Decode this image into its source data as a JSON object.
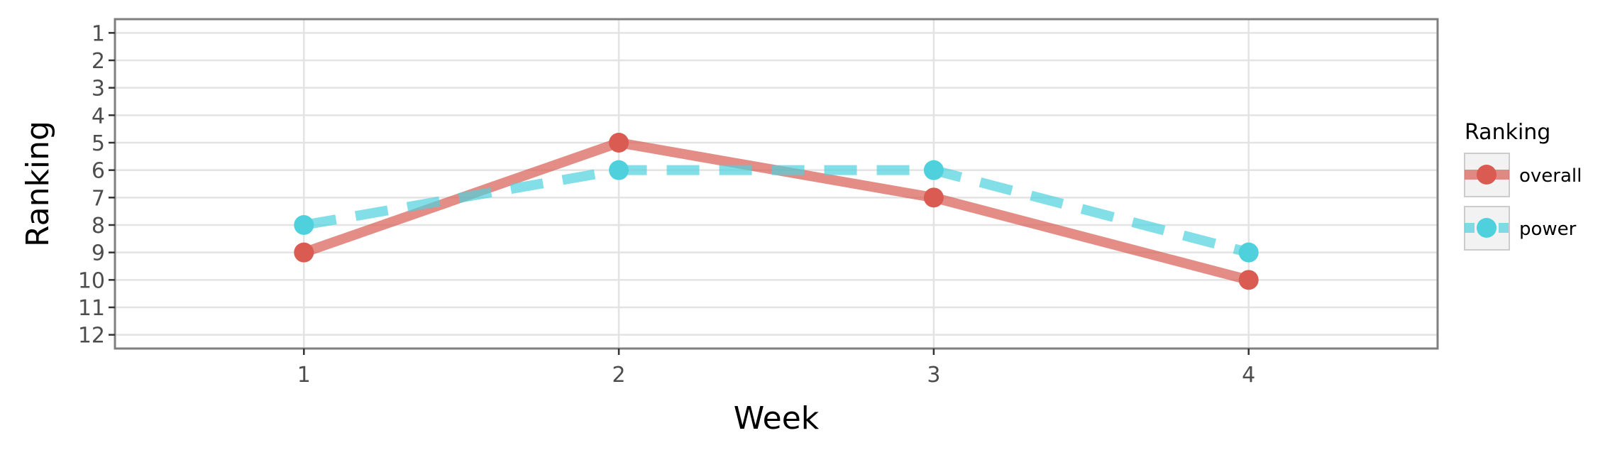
{
  "chart_data": {
    "type": "line",
    "title": "",
    "xlabel": "Week",
    "ylabel": "Ranking",
    "x": [
      1,
      2,
      3,
      4
    ],
    "x_ticks": [
      "1",
      "2",
      "3",
      "4"
    ],
    "xlim": [
      0.4,
      4.6
    ],
    "y_ticks": [
      "1",
      "2",
      "3",
      "4",
      "5",
      "6",
      "7",
      "8",
      "9",
      "10",
      "11",
      "12"
    ],
    "ylim": [
      0.5,
      12.5
    ],
    "y_reversed": true,
    "grid": true,
    "legend": {
      "title": "Ranking",
      "placement": "right"
    },
    "series": [
      {
        "name": "overall",
        "values": [
          9,
          5,
          7,
          10
        ],
        "color": "#d95b52",
        "line_style": "solid"
      },
      {
        "name": "power",
        "values": [
          8,
          6,
          6,
          9
        ],
        "color": "#4fd1dd",
        "line_style": "dashed"
      }
    ]
  }
}
